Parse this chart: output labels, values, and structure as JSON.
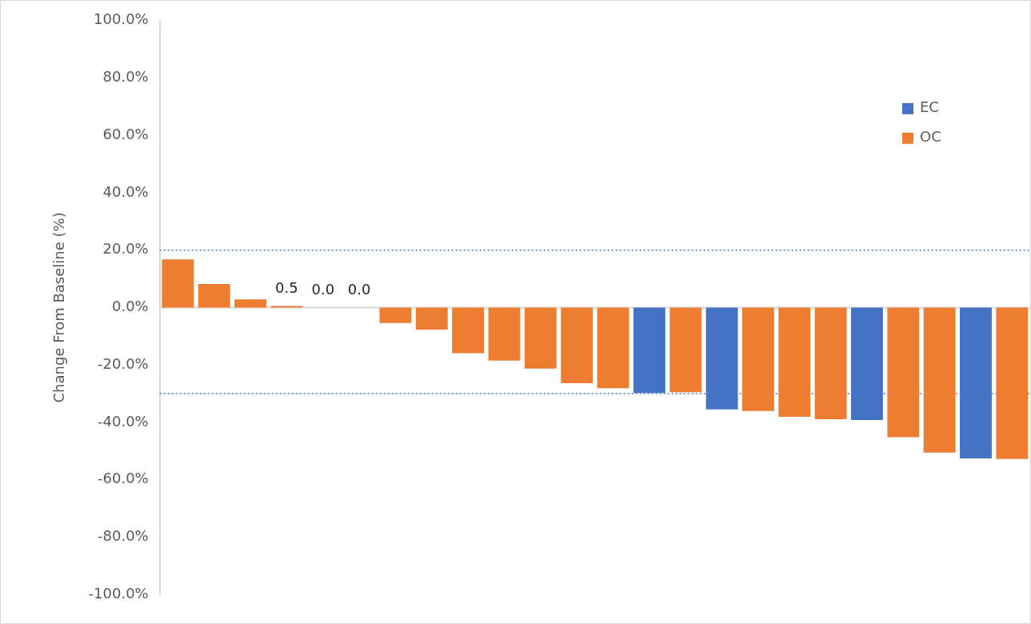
{
  "chart_data": {
    "type": "bar",
    "ylabel": "Change From Baseline (%)",
    "categories": [
      null,
      null,
      null,
      null,
      null,
      null,
      null,
      null,
      null,
      null,
      null,
      null,
      null,
      null,
      null,
      null,
      null,
      null,
      null,
      null,
      null,
      null,
      null,
      null
    ],
    "series": [
      {
        "name": "EC",
        "color": "#4472c4",
        "values": [
          null,
          null,
          null,
          null,
          null,
          null,
          null,
          null,
          null,
          null,
          null,
          null,
          null,
          -29.8,
          null,
          -35.5,
          null,
          null,
          null,
          -39.2,
          null,
          null,
          -52.6,
          null
        ]
      },
      {
        "name": "OC",
        "color": "#ed7d31",
        "values": [
          16.8,
          8.2,
          2.8,
          0.5,
          0.0,
          0.0,
          -5.4,
          -7.7,
          -15.9,
          -18.5,
          -21.3,
          -26.4,
          -28.1,
          null,
          -29.5,
          null,
          -36.1,
          -38.1,
          -38.9,
          null,
          -45.2,
          -50.6,
          null,
          -52.8
        ],
        "value_labels": [
          null,
          null,
          null,
          "0.5",
          "0.0",
          "0.0",
          null,
          null,
          null,
          null,
          null,
          null,
          null,
          null,
          null,
          null,
          null,
          null,
          null,
          null,
          null,
          null,
          null,
          null
        ]
      }
    ],
    "ylim": [
      -100,
      100
    ],
    "yticks": [
      {
        "value": -100,
        "label": "-100.0%"
      },
      {
        "value": -80,
        "label": "-80.0%"
      },
      {
        "value": -60,
        "label": "-60.0%"
      },
      {
        "value": -40,
        "label": "-40.0%"
      },
      {
        "value": -20,
        "label": "-20.0%"
      },
      {
        "value": 0,
        "label": "0.0%"
      },
      {
        "value": 20,
        "label": "20.0%"
      },
      {
        "value": 40,
        "label": "40.0%"
      },
      {
        "value": 60,
        "label": "60.0%"
      },
      {
        "value": 80,
        "label": "80.0%"
      },
      {
        "value": 100,
        "label": "100.0%"
      }
    ],
    "ref_lines": [
      {
        "axis": "y",
        "value": 20,
        "color": "#4472c4",
        "line_style": "dotted"
      },
      {
        "axis": "y",
        "value": -30,
        "color": "#4472c4",
        "line_style": "dotted"
      }
    ],
    "grid": false,
    "legend": "top right",
    "tick_labels": "y"
  }
}
